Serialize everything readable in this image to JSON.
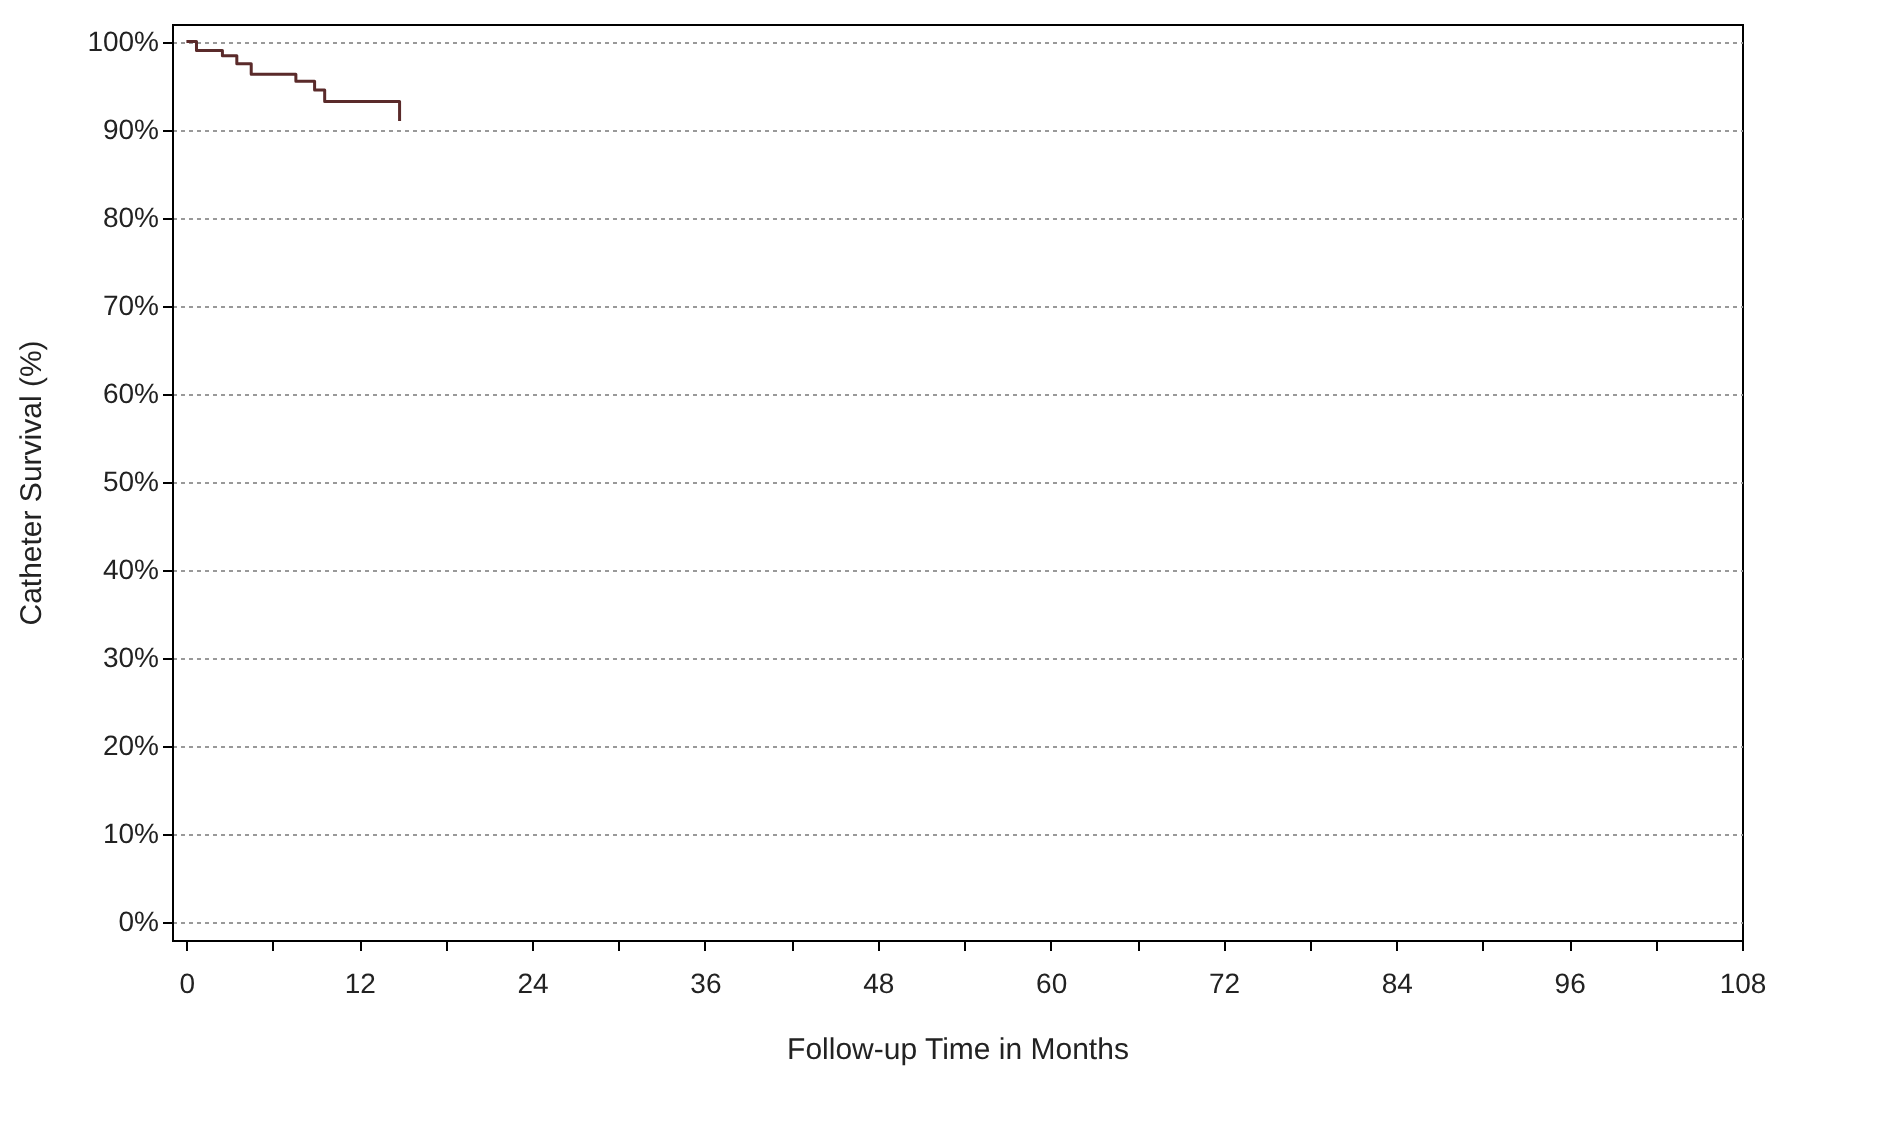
{
  "chart_data": {
    "type": "step",
    "xlabel": "Follow-up Time in Months",
    "ylabel": "Catheter Survival (%)",
    "x": [
      0,
      0.7,
      2.5,
      3.5,
      4.5,
      7.6,
      8.9,
      9.6,
      14.8
    ],
    "series": [
      {
        "color": "#5a2a2a",
        "values": [
          100,
          99,
          98.4,
          97.5,
          96.3,
          95.5,
          94.5,
          93.2,
          91
        ]
      }
    ],
    "xlim": [
      -1,
      108
    ],
    "ylim": [
      -2,
      102
    ],
    "xticks": [
      0,
      {
        "value": 6,
        "label": null
      },
      12,
      {
        "value": 18,
        "label": null
      },
      24,
      {
        "value": 30,
        "label": null
      },
      36,
      {
        "value": 42,
        "label": null
      },
      48,
      {
        "value": 54,
        "label": null
      },
      60,
      {
        "value": 66,
        "label": null
      },
      72,
      {
        "value": 78,
        "label": null
      },
      84,
      {
        "value": 90,
        "label": null
      },
      96,
      {
        "value": 102,
        "label": null
      },
      108
    ],
    "yticks": [
      {
        "value": 0,
        "label": "0%"
      },
      {
        "value": 10,
        "label": "10%"
      },
      {
        "value": 20,
        "label": "20%"
      },
      {
        "value": 30,
        "label": "30%"
      },
      {
        "value": 40,
        "label": "40%"
      },
      {
        "value": 50,
        "label": "50%"
      },
      {
        "value": 60,
        "label": "60%"
      },
      {
        "value": 70,
        "label": "70%"
      },
      {
        "value": 80,
        "label": "80%"
      },
      {
        "value": 90,
        "label": "90%"
      },
      {
        "value": 100,
        "label": "100%"
      }
    ],
    "grid": "y",
    "marker": "none",
    "line_style": "solid"
  }
}
